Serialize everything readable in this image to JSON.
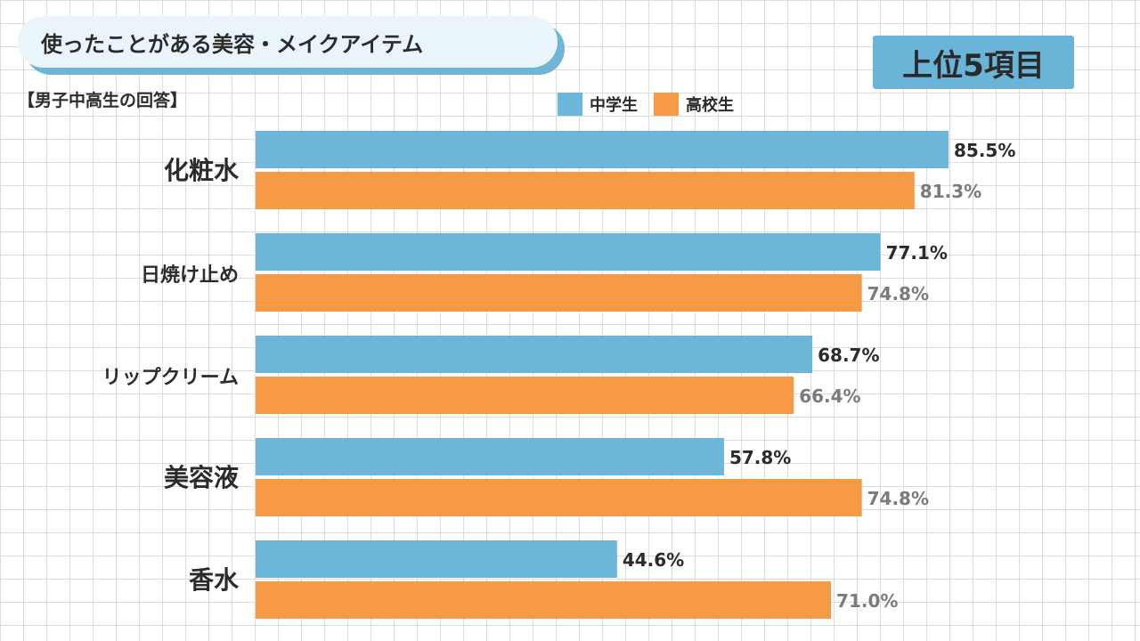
{
  "header": {
    "title": "使ったことがある美容・メイクアイテム",
    "badge": "上位5項目",
    "subtitle": "【男子中高生の回答】"
  },
  "chart_data": {
    "type": "bar",
    "orientation": "horizontal",
    "categories": [
      "化粧水",
      "日焼け止め",
      "リップクリーム",
      "美容液",
      "香水"
    ],
    "series": [
      {
        "name": "中学生",
        "values": [
          85.5,
          77.1,
          68.7,
          57.8,
          44.6
        ],
        "color": "#6cb6d9",
        "label_color": "#2b2b2b"
      },
      {
        "name": "高校生",
        "values": [
          81.3,
          74.8,
          66.4,
          74.8,
          71.0
        ],
        "color": "#f79a45",
        "label_color": "#7b7b7b"
      }
    ],
    "value_suffix": "%",
    "xlim": [
      0,
      100
    ],
    "legend_position": "top"
  }
}
